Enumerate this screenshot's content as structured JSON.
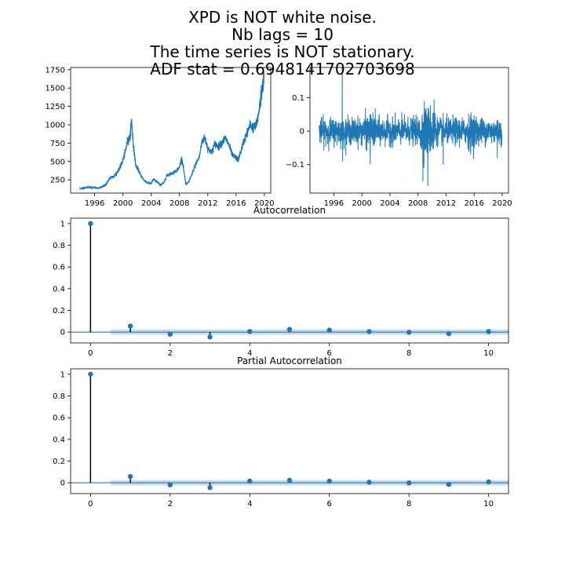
{
  "suptitle": {
    "line1": "XPD is NOT white noise.",
    "line2": "Nb lags = 10",
    "line3": "The time series is NOT stationary.",
    "line4": "ADF stat = 0.6948141702703698"
  },
  "chart_data": [
    {
      "id": "price",
      "type": "line",
      "title": "",
      "xlabel": "",
      "ylabel": "",
      "xlim": [
        1992.6,
        2020.9
      ],
      "ylim": [
        70,
        1780
      ],
      "xticks": [
        1996,
        2000,
        2004,
        2008,
        2012,
        2016,
        2020
      ],
      "yticks": [
        250,
        500,
        750,
        1000,
        1250,
        1500,
        1750
      ],
      "color": "#1f77b4",
      "series": [
        {
          "x": [
            1993.9,
            1994.5,
            1995.0,
            1995.5,
            1996.0,
            1996.5,
            1997.0,
            1997.3,
            1997.6,
            1998.0,
            1998.3,
            1998.8,
            1999.2,
            1999.6,
            2000.0,
            2000.3,
            2000.7,
            2001.0,
            2001.2,
            2001.5,
            2001.8,
            2002.2,
            2002.6,
            2003.0,
            2003.5,
            2004.0,
            2004.3,
            2004.8,
            2005.3,
            2005.8,
            2006.2,
            2006.6,
            2007.0,
            2007.5,
            2008.0,
            2008.3,
            2008.6,
            2008.9,
            2009.3,
            2009.8,
            2010.3,
            2010.8,
            2011.2,
            2011.6,
            2012.0,
            2012.5,
            2013.0,
            2013.5,
            2014.0,
            2014.5,
            2015.0,
            2015.5,
            2015.9,
            2016.3,
            2016.8,
            2017.2,
            2017.6,
            2018.0,
            2018.4,
            2018.8,
            2019.1,
            2019.4,
            2019.6,
            2019.8,
            2019.95
          ],
          "y": [
            130,
            140,
            150,
            145,
            140,
            135,
            150,
            170,
            180,
            250,
            290,
            300,
            360,
            420,
            520,
            620,
            800,
            820,
            1080,
            700,
            450,
            380,
            300,
            240,
            210,
            200,
            260,
            220,
            180,
            210,
            310,
            330,
            340,
            370,
            420,
            550,
            380,
            190,
            220,
            330,
            470,
            560,
            780,
            820,
            680,
            620,
            740,
            700,
            760,
            820,
            720,
            580,
            560,
            520,
            680,
            800,
            900,
            1000,
            960,
            980,
            1100,
            1300,
            1450,
            1550,
            1700
          ]
        }
      ]
    },
    {
      "id": "returns",
      "type": "line",
      "title": "",
      "xlabel": "",
      "ylabel": "",
      "xlim": [
        1992.6,
        2020.9
      ],
      "ylim": [
        -0.185,
        0.19
      ],
      "xticks": [
        1996,
        2000,
        2004,
        2008,
        2012,
        2016,
        2020
      ],
      "yticks": [
        -0.1,
        0.0,
        0.1
      ],
      "color": "#1f77b4",
      "series": [
        {
          "x_range": [
            1993.9,
            2019.95
          ],
          "typical_amplitude": 0.035,
          "notable_points": [
            {
              "x": 1997.2,
              "y": 0.19
            },
            {
              "x": 1997.25,
              "y": -0.09
            },
            {
              "x": 2001.2,
              "y": -0.1
            },
            {
              "x": 2008.7,
              "y": -0.15
            },
            {
              "x": 2008.9,
              "y": 0.09
            },
            {
              "x": 2009.4,
              "y": -0.165
            },
            {
              "x": 2010.3,
              "y": 0.095
            },
            {
              "x": 2011.6,
              "y": -0.1
            },
            {
              "x": 2015.5,
              "y": -0.07
            },
            {
              "x": 2019.3,
              "y": -0.08
            }
          ]
        }
      ]
    },
    {
      "id": "acf",
      "type": "stem",
      "title": "Autocorrelation",
      "xlabel": "",
      "ylabel": "",
      "xlim": [
        -0.5,
        10.5
      ],
      "ylim": [
        -0.1,
        1.05
      ],
      "xticks": [
        0,
        2,
        4,
        6,
        8,
        10
      ],
      "yticks": [
        0.0,
        0.2,
        0.4,
        0.6,
        0.8,
        1.0
      ],
      "lags": [
        0,
        1,
        2,
        3,
        4,
        5,
        6,
        7,
        8,
        9,
        10
      ],
      "values": [
        1.0,
        0.055,
        -0.02,
        -0.045,
        0.005,
        0.025,
        0.018,
        0.005,
        -0.002,
        -0.015,
        0.005
      ],
      "confidence_band": 0.025,
      "color": "#1f77b4"
    },
    {
      "id": "pacf",
      "type": "stem",
      "title": "Partial Autocorrelation",
      "xlabel": "",
      "ylabel": "",
      "xlim": [
        -0.5,
        10.5
      ],
      "ylim": [
        -0.1,
        1.05
      ],
      "xticks": [
        0,
        2,
        4,
        6,
        8,
        10
      ],
      "yticks": [
        0.0,
        0.2,
        0.4,
        0.6,
        0.8,
        1.0
      ],
      "lags": [
        0,
        1,
        2,
        3,
        4,
        5,
        6,
        7,
        8,
        9,
        10
      ],
      "values": [
        1.0,
        0.058,
        -0.02,
        -0.045,
        0.015,
        0.022,
        0.015,
        0.005,
        -0.002,
        -0.015,
        0.008
      ],
      "confidence_band": 0.025,
      "color": "#1f77b4"
    }
  ]
}
